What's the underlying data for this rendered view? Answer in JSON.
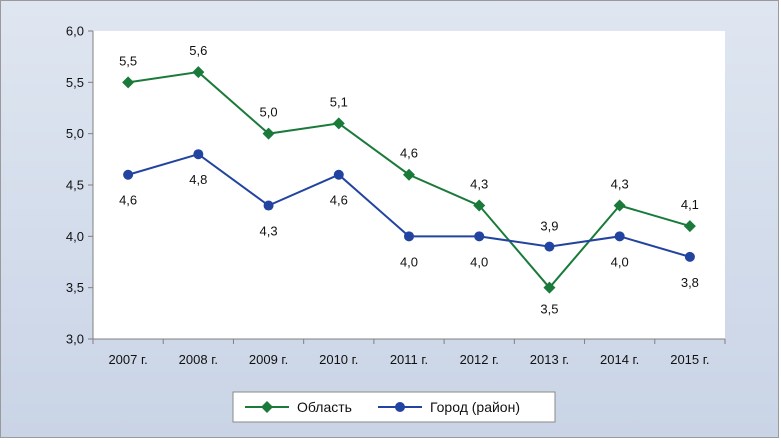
{
  "chart_data": {
    "type": "line",
    "categories": [
      "2007 г.",
      "2008 г.",
      "2009 г.",
      "2010 г.",
      "2011 г.",
      "2012 г.",
      "2013 г.",
      "2014 г.",
      "2015 г."
    ],
    "series": [
      {
        "name": "Область",
        "color": "#1a7a3a",
        "marker": "diamond",
        "values": [
          5.5,
          5.6,
          5.0,
          5.1,
          4.6,
          4.3,
          3.5,
          4.3,
          4.1
        ],
        "labels": [
          "5,5",
          "5,6",
          "5,0",
          "5,1",
          "4,6",
          "4,3",
          "3,5",
          "4,3",
          "4,1"
        ]
      },
      {
        "name": "Город (район)",
        "color": "#2244a0",
        "marker": "circle",
        "values": [
          4.6,
          4.8,
          4.3,
          4.6,
          4.0,
          4.0,
          3.9,
          4.0,
          3.8
        ],
        "labels": [
          "4,6",
          "4,8",
          "4,3",
          "4,6",
          "4,0",
          "4,0",
          "3,9",
          "4,0",
          "3,8"
        ]
      }
    ],
    "ylim": [
      3.0,
      6.0
    ],
    "yticks": [
      3.0,
      3.5,
      4.0,
      4.5,
      5.0,
      5.5,
      6.0
    ],
    "ytick_labels": [
      "3,0",
      "3,5",
      "4,0",
      "4,5",
      "5,0",
      "5,5",
      "6,0"
    ],
    "grid": false,
    "legend": "bottom",
    "xlabel": "",
    "ylabel": "",
    "title": ""
  }
}
